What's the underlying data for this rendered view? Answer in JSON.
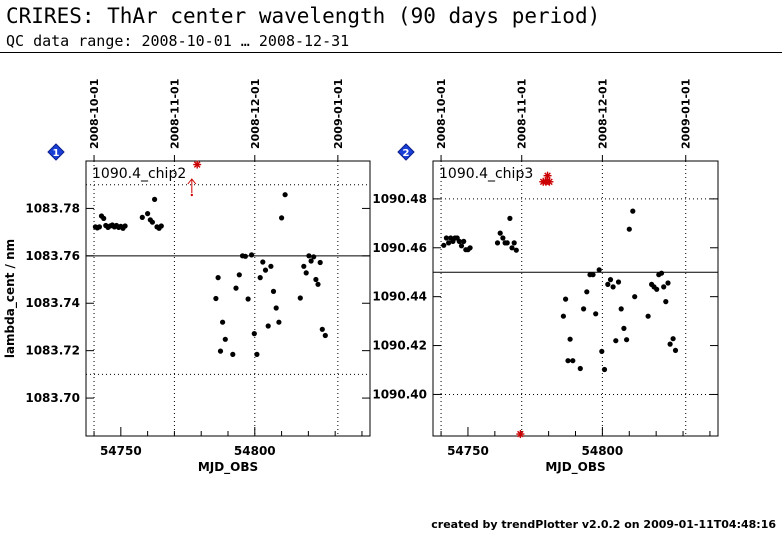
{
  "header": {
    "title": "CRIRES: ThAr center wavelength (90 days period)",
    "subtitle": "QC data range: 2008-10-01 … 2008-12-31"
  },
  "footer": {
    "text": "created by trendPlotter v2.0.2 on 2009-01-11T04:48:16"
  },
  "colors": {
    "data": "#000000",
    "outlier": "#cc0000",
    "badge": "#1a3fd6",
    "grid": "#000000"
  },
  "chart_data": [
    {
      "type": "scatter",
      "badge": "1",
      "legend": "1090.4_chip2",
      "xlabel": "MJD_OBS",
      "ylabel": "lambda_cent / nm",
      "xlim": [
        54737,
        54843
      ],
      "ylim": [
        1083.684,
        1083.8
      ],
      "x_ticks": [
        54750,
        54800
      ],
      "y_ticks": [
        1083.7,
        1083.72,
        1083.74,
        1083.76,
        1083.78
      ],
      "y_tick_labels": [
        "1083.70",
        "1083.72",
        "1083.74",
        "1083.76",
        "1083.78"
      ],
      "reference_line": 1083.76,
      "limit_lines": [
        1083.71,
        1083.79
      ],
      "date_ticks": [
        {
          "mjd": 54740,
          "label": "2008-10-01"
        },
        {
          "mjd": 54770,
          "label": "2008-11-01"
        },
        {
          "mjd": 54800,
          "label": "2008-12-01"
        },
        {
          "mjd": 54831,
          "label": "2009-01-01"
        }
      ],
      "points": [
        [
          54740.5,
          1083.7722
        ],
        [
          54741.2,
          1083.7718
        ],
        [
          54742.0,
          1083.7722
        ],
        [
          54742.8,
          1083.7768
        ],
        [
          54743.6,
          1083.7758
        ],
        [
          54744.4,
          1083.7728
        ],
        [
          54745.2,
          1083.772
        ],
        [
          54746.0,
          1083.7726
        ],
        [
          54746.8,
          1083.773
        ],
        [
          54747.6,
          1083.7722
        ],
        [
          54748.4,
          1083.7728
        ],
        [
          54749.2,
          1083.772
        ],
        [
          54750.0,
          1083.7724
        ],
        [
          54750.8,
          1083.7716
        ],
        [
          54751.6,
          1083.7726
        ],
        [
          54758.0,
          1083.7762
        ],
        [
          54760.0,
          1083.7778
        ],
        [
          54761.0,
          1083.7752
        ],
        [
          54761.8,
          1083.7742
        ],
        [
          54762.6,
          1083.7838
        ],
        [
          54763.5,
          1083.7722
        ],
        [
          54764.3,
          1083.7716
        ],
        [
          54765.1,
          1083.7726
        ],
        [
          54785.5,
          1083.742
        ],
        [
          54786.3,
          1083.7508
        ],
        [
          54787.2,
          1083.7198
        ],
        [
          54788.0,
          1083.732
        ],
        [
          54789.0,
          1083.7248
        ],
        [
          54791.8,
          1083.7184
        ],
        [
          54793.0,
          1083.7464
        ],
        [
          54794.2,
          1083.752
        ],
        [
          54795.4,
          1083.76
        ],
        [
          54796.5,
          1083.7598
        ],
        [
          54797.5,
          1083.7418
        ],
        [
          54798.8,
          1083.7604
        ],
        [
          54799.8,
          1083.7272
        ],
        [
          54800.8,
          1083.7184
        ],
        [
          54802.0,
          1083.7508
        ],
        [
          54803.0,
          1083.7574
        ],
        [
          54804.0,
          1083.754
        ],
        [
          54805.0,
          1083.7304
        ],
        [
          54806.0,
          1083.7556
        ],
        [
          54807.0,
          1083.745
        ],
        [
          54808.0,
          1083.738
        ],
        [
          54809.0,
          1083.732
        ],
        [
          54810.0,
          1083.776
        ],
        [
          54811.3,
          1083.7858
        ],
        [
          54817.0,
          1083.7422
        ],
        [
          54818.3,
          1083.7556
        ],
        [
          54819.2,
          1083.7528
        ],
        [
          54820.2,
          1083.76
        ],
        [
          54821.0,
          1083.7578
        ],
        [
          54822.0,
          1083.7596
        ],
        [
          54822.8,
          1083.75
        ],
        [
          54823.6,
          1083.748
        ],
        [
          54824.4,
          1083.7572
        ],
        [
          54825.2,
          1083.729
        ],
        [
          54826.3,
          1083.7264
        ]
      ],
      "outliers": [
        [
          54778.5,
          1083.7985
        ]
      ],
      "outlier_arrows": [
        54776.5
      ]
    },
    {
      "type": "scatter",
      "badge": "2",
      "legend": "1090.4_chip3",
      "xlabel": "MJD_OBS",
      "ylabel": "",
      "xlim": [
        54737,
        54843
      ],
      "ylim": [
        1090.383,
        1090.4955
      ],
      "x_ticks": [
        54750,
        54800
      ],
      "y_ticks": [
        1090.4,
        1090.42,
        1090.44,
        1090.46,
        1090.48
      ],
      "y_tick_labels": [
        "1090.40",
        "1090.42",
        "1090.44",
        "1090.46",
        "1090.48"
      ],
      "reference_line": 1090.45,
      "limit_lines": [
        1090.4,
        1090.48
      ],
      "date_ticks": [
        {
          "mjd": 54740,
          "label": "2008-10-01"
        },
        {
          "mjd": 54770,
          "label": "2008-11-01"
        },
        {
          "mjd": 54800,
          "label": "2008-12-01"
        },
        {
          "mjd": 54831,
          "label": "2009-01-01"
        }
      ],
      "points": [
        [
          54741.0,
          1090.461
        ],
        [
          54742.0,
          1090.464
        ],
        [
          54742.8,
          1090.462
        ],
        [
          54743.6,
          1090.464
        ],
        [
          54744.4,
          1090.4626
        ],
        [
          54745.2,
          1090.464
        ],
        [
          54746.0,
          1090.464
        ],
        [
          54746.8,
          1090.4626
        ],
        [
          54747.6,
          1090.4608
        ],
        [
          54748.4,
          1090.4626
        ],
        [
          54749.2,
          1090.4592
        ],
        [
          54750.0,
          1090.4592
        ],
        [
          54750.8,
          1090.46
        ],
        [
          54761.0,
          1090.462
        ],
        [
          54762.0,
          1090.466
        ],
        [
          54763.0,
          1090.464
        ],
        [
          54763.8,
          1090.462
        ],
        [
          54764.6,
          1090.462
        ],
        [
          54765.6,
          1090.472
        ],
        [
          54766.4,
          1090.46
        ],
        [
          54767.2,
          1090.462
        ],
        [
          54768.0,
          1090.459
        ],
        [
          54785.5,
          1090.432
        ],
        [
          54786.3,
          1090.439
        ],
        [
          54787.2,
          1090.4138
        ],
        [
          54788.0,
          1090.4226
        ],
        [
          54789.0,
          1090.4138
        ],
        [
          54791.8,
          1090.4106
        ],
        [
          54793.0,
          1090.435
        ],
        [
          54794.2,
          1090.442
        ],
        [
          54795.4,
          1090.449
        ],
        [
          54796.5,
          1090.449
        ],
        [
          54797.5,
          1090.433
        ],
        [
          54798.8,
          1090.451
        ],
        [
          54799.8,
          1090.4176
        ],
        [
          54800.8,
          1090.4102
        ],
        [
          54802.0,
          1090.445
        ],
        [
          54803.0,
          1090.447
        ],
        [
          54804.0,
          1090.444
        ],
        [
          54805.0,
          1090.422
        ],
        [
          54806.0,
          1090.446
        ],
        [
          54807.0,
          1090.435
        ],
        [
          54808.0,
          1090.427
        ],
        [
          54809.0,
          1090.4224
        ],
        [
          54810.0,
          1090.4676
        ],
        [
          54811.3,
          1090.475
        ],
        [
          54812.0,
          1090.44
        ],
        [
          54817.0,
          1090.432
        ],
        [
          54818.3,
          1090.445
        ],
        [
          54819.2,
          1090.444
        ],
        [
          54820.2,
          1090.443
        ],
        [
          54821.0,
          1090.449
        ],
        [
          54822.0,
          1090.4496
        ],
        [
          54822.8,
          1090.444
        ],
        [
          54823.6,
          1090.438
        ],
        [
          54824.4,
          1090.4456
        ],
        [
          54825.2,
          1090.4206
        ],
        [
          54826.3,
          1090.4228
        ],
        [
          54827.2,
          1090.418
        ]
      ],
      "outliers": [
        [
          54769.5,
          1090.3838
        ],
        [
          54778.0,
          1090.487
        ],
        [
          54779.0,
          1090.487
        ],
        [
          54779.6,
          1090.4895
        ],
        [
          54780.3,
          1090.487
        ]
      ],
      "outlier_arrows": []
    }
  ]
}
